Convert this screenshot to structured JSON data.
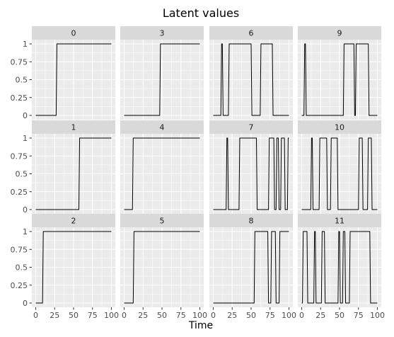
{
  "chart_data": {
    "type": "line",
    "title": "Latent values",
    "xlabel": "Time",
    "ylabel": "",
    "facet_layout": "3 rows x 4 columns, column-major order",
    "xlim": [
      0,
      100
    ],
    "ylim": [
      0,
      1
    ],
    "x_ticks": [
      0,
      25,
      50,
      75,
      100
    ],
    "y_ticks": [
      0,
      0.25,
      0.5,
      0.75,
      1
    ],
    "x_tick_labels": [
      "0",
      "25",
      "50",
      "75",
      "100"
    ],
    "y_tick_labels": [
      "0",
      "0.25",
      "0.5",
      "0.75",
      "1"
    ],
    "grid": true,
    "line_color": "#000000",
    "panel_background": "#ebebeb",
    "strip_background": "#d9d9d9",
    "series": [
      {
        "name": "0",
        "x": [
          0,
          27,
          28,
          100
        ],
        "y": [
          0,
          0,
          1,
          1
        ]
      },
      {
        "name": "1",
        "x": [
          0,
          57,
          58,
          100
        ],
        "y": [
          0,
          0,
          1,
          1
        ]
      },
      {
        "name": "2",
        "x": [
          0,
          9,
          10,
          100
        ],
        "y": [
          0,
          0,
          1,
          1
        ]
      },
      {
        "name": "3",
        "x": [
          0,
          47,
          48,
          100
        ],
        "y": [
          0,
          0,
          1,
          1
        ]
      },
      {
        "name": "4",
        "x": [
          0,
          11,
          12,
          100
        ],
        "y": [
          0,
          0,
          1,
          1
        ]
      },
      {
        "name": "5",
        "x": [
          0,
          12,
          13,
          100
        ],
        "y": [
          0,
          0,
          1,
          1
        ]
      },
      {
        "name": "6",
        "x": [
          0,
          10,
          11,
          12,
          13,
          20,
          21,
          50,
          51,
          62,
          63,
          78,
          79,
          100
        ],
        "y": [
          0,
          0,
          1,
          1,
          0,
          0,
          1,
          1,
          0,
          0,
          1,
          1,
          0,
          0
        ]
      },
      {
        "name": "7",
        "x": [
          0,
          17,
          18,
          19,
          20,
          34,
          35,
          57,
          58,
          73,
          74,
          80,
          81,
          83,
          84,
          86,
          87,
          89,
          90,
          94,
          95,
          98,
          99,
          100
        ],
        "y": [
          0,
          0,
          1,
          1,
          0,
          0,
          1,
          1,
          0,
          0,
          1,
          1,
          0,
          0,
          1,
          1,
          0,
          0,
          1,
          1,
          0,
          0,
          1,
          1
        ]
      },
      {
        "name": "8",
        "x": [
          0,
          54,
          55,
          72,
          73,
          76,
          77,
          82,
          83,
          87,
          88,
          100
        ],
        "y": [
          0,
          0,
          1,
          1,
          0,
          0,
          1,
          1,
          0,
          0,
          1,
          1
        ]
      },
      {
        "name": "9",
        "x": [
          0,
          3,
          4,
          5,
          6,
          55,
          56,
          69,
          70,
          71,
          72,
          88,
          89,
          100
        ],
        "y": [
          0,
          0,
          1,
          1,
          0,
          0,
          1,
          1,
          0,
          0,
          1,
          1,
          0,
          0
        ]
      },
      {
        "name": "10",
        "x": [
          0,
          12,
          13,
          14,
          15,
          23,
          24,
          33,
          34,
          38,
          39,
          47,
          48,
          75,
          76,
          80,
          81,
          87,
          88,
          92,
          93,
          100
        ],
        "y": [
          0,
          0,
          1,
          1,
          0,
          0,
          1,
          1,
          0,
          0,
          1,
          1,
          0,
          0,
          1,
          1,
          0,
          0,
          1,
          1,
          0,
          0
        ]
      },
      {
        "name": "11",
        "x": [
          0,
          1,
          2,
          7,
          8,
          16,
          17,
          18,
          19,
          26,
          27,
          30,
          31,
          48,
          49,
          50,
          51,
          54,
          55,
          57,
          58,
          63,
          64,
          90,
          91,
          100
        ],
        "y": [
          0,
          0,
          1,
          1,
          0,
          0,
          1,
          1,
          0,
          0,
          1,
          1,
          0,
          0,
          1,
          1,
          0,
          0,
          1,
          1,
          0,
          0,
          1,
          1,
          0,
          0
        ]
      }
    ]
  }
}
